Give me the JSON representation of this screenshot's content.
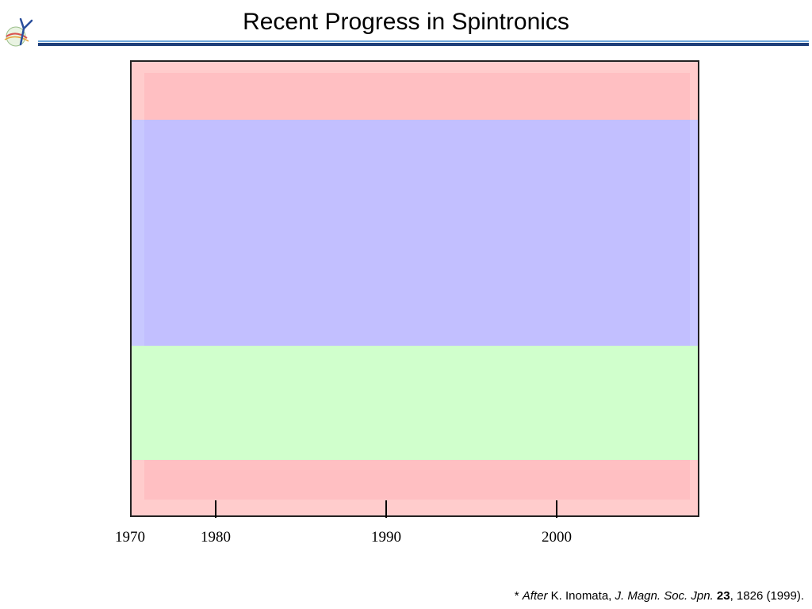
{
  "header": {
    "title": "Recent Progress in Spintronics",
    "logo_icon": "y-logo-icon",
    "rule_colors": {
      "thin": "#6fa8dc",
      "thick": "#1f3f7a"
    }
  },
  "timeline": {
    "bands": [
      {
        "name": "top-red",
        "color": "#ffcccc",
        "inner_color": "#ffbfc2"
      },
      {
        "name": "blue",
        "color": "#c8c8ff",
        "inner_color": "#c2bfff"
      },
      {
        "name": "green",
        "color": "#d0ffcc"
      },
      {
        "name": "bottom-red",
        "color": "#ffcccc",
        "inner_color": "#ffbfc2"
      }
    ],
    "years": [
      "1970",
      "1980",
      "1990",
      "2000"
    ]
  },
  "citation": {
    "prefix": "* ",
    "after": "After",
    "authors": " K. Inomata, ",
    "journal": "J. Magn. Soc. Jpn.",
    "volume": "23",
    "rest": ", 1826 (1999)."
  }
}
